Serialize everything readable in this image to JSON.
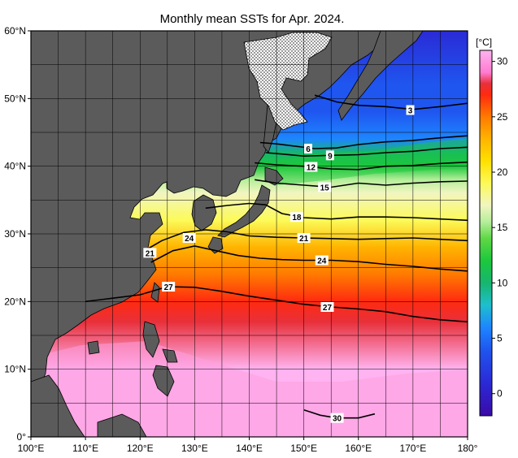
{
  "title": "Monthly mean SSTs for Apr. 2024.",
  "colors": {
    "land": "#5b5b5b",
    "frame": "#000000",
    "grid": "#000000",
    "sea_ice_pattern": "#000000"
  },
  "map": {
    "lon_range": [
      100,
      180
    ],
    "lat_range": [
      0,
      60
    ],
    "grid_step_deg": 5,
    "lon_tick_labels": [
      "100°E",
      "110°E",
      "120°E",
      "130°E",
      "140°E",
      "150°E",
      "160°E",
      "170°E",
      "180°"
    ],
    "lon_tick_values": [
      100,
      110,
      120,
      130,
      140,
      150,
      160,
      170,
      180
    ],
    "lat_tick_labels": [
      "0°",
      "10°N",
      "20°N",
      "30°N",
      "40°N",
      "50°N",
      "60°N"
    ],
    "lat_tick_values": [
      0,
      10,
      20,
      30,
      40,
      50,
      60
    ]
  },
  "colorbar": {
    "unit_label": "[°C]",
    "min": -2,
    "max": 31,
    "tick_labels": [
      "0",
      "5",
      "10",
      "15",
      "20",
      "25",
      "30"
    ],
    "tick_values": [
      0,
      5,
      10,
      15,
      20,
      25,
      30
    ],
    "stops": [
      {
        "value": -2,
        "color": "#3a0aa8"
      },
      {
        "value": 1,
        "color": "#2a2ad6"
      },
      {
        "value": 4,
        "color": "#1f56f0"
      },
      {
        "value": 6,
        "color": "#1e86ff"
      },
      {
        "value": 8,
        "color": "#1ebfcd"
      },
      {
        "value": 10,
        "color": "#17b56f"
      },
      {
        "value": 12,
        "color": "#1cc83c"
      },
      {
        "value": 14,
        "color": "#5ed845"
      },
      {
        "value": 15.5,
        "color": "#b5ee9a"
      },
      {
        "value": 17,
        "color": "#f2f5c0"
      },
      {
        "value": 19,
        "color": "#fcfa58"
      },
      {
        "value": 21,
        "color": "#ffe000"
      },
      {
        "value": 23,
        "color": "#ffb400"
      },
      {
        "value": 25,
        "color": "#ff7a00"
      },
      {
        "value": 27,
        "color": "#ff2a10"
      },
      {
        "value": 28,
        "color": "#e8303a"
      },
      {
        "value": 29,
        "color": "#ff7bd0"
      },
      {
        "value": 31,
        "color": "#ffb3f0"
      }
    ]
  },
  "isotherm_labels": [
    {
      "text": "3",
      "lon": 169.5,
      "lat": 48.3
    },
    {
      "text": "6",
      "lon": 150.8,
      "lat": 42.6
    },
    {
      "text": "9",
      "lon": 154.8,
      "lat": 41.6
    },
    {
      "text": "12",
      "lon": 151.3,
      "lat": 39.9
    },
    {
      "text": "15",
      "lon": 153.8,
      "lat": 36.9
    },
    {
      "text": "18",
      "lon": 148.7,
      "lat": 32.5
    },
    {
      "text": "21",
      "lon": 150.0,
      "lat": 29.4
    },
    {
      "text": "21",
      "lon": 121.8,
      "lat": 27.2
    },
    {
      "text": "24",
      "lon": 129.0,
      "lat": 29.4
    },
    {
      "text": "24",
      "lon": 153.3,
      "lat": 26.1
    },
    {
      "text": "27",
      "lon": 125.2,
      "lat": 22.2
    },
    {
      "text": "27",
      "lon": 154.3,
      "lat": 19.2
    },
    {
      "text": "30",
      "lon": 156.1,
      "lat": 2.8
    }
  ],
  "isotherm_lines": [
    {
      "label": "3",
      "points": [
        [
          152,
          50.5
        ],
        [
          156,
          49.5
        ],
        [
          160,
          49
        ],
        [
          165,
          48.8
        ],
        [
          170,
          48.4
        ],
        [
          175,
          48.8
        ],
        [
          180,
          49.3
        ]
      ]
    },
    {
      "label": "6",
      "points": [
        [
          142,
          43.5
        ],
        [
          145,
          43.3
        ],
        [
          148,
          43
        ],
        [
          152,
          42.6
        ],
        [
          156,
          42.7
        ],
        [
          160,
          43.2
        ],
        [
          165,
          43.6
        ],
        [
          170,
          43.8
        ],
        [
          175,
          44.2
        ],
        [
          180,
          44.5
        ]
      ]
    },
    {
      "label": "9",
      "points": [
        [
          143,
          42
        ],
        [
          146,
          41.8
        ],
        [
          150,
          41.5
        ],
        [
          155,
          41.6
        ],
        [
          160,
          41.7
        ],
        [
          165,
          42
        ],
        [
          170,
          42.2
        ],
        [
          175,
          42.6
        ],
        [
          180,
          42.8
        ]
      ]
    },
    {
      "label": "12",
      "points": [
        [
          141,
          40.5
        ],
        [
          145,
          40.2
        ],
        [
          150,
          40
        ],
        [
          155,
          39.6
        ],
        [
          160,
          39.5
        ],
        [
          165,
          40
        ],
        [
          170,
          40.1
        ],
        [
          175,
          40.4
        ],
        [
          180,
          40.6
        ]
      ]
    },
    {
      "label": "15",
      "points": [
        [
          141,
          38
        ],
        [
          145,
          37.5
        ],
        [
          150,
          37.2
        ],
        [
          155,
          36.9
        ],
        [
          160,
          37.5
        ],
        [
          165,
          37.2
        ],
        [
          170,
          37.5
        ],
        [
          175,
          37.7
        ],
        [
          180,
          37.8
        ]
      ]
    },
    {
      "label": "18",
      "points": [
        [
          132,
          33.8
        ],
        [
          136,
          34.2
        ],
        [
          140,
          34.5
        ],
        [
          143,
          34.3
        ],
        [
          146,
          33
        ],
        [
          150,
          32.4
        ],
        [
          155,
          32.2
        ],
        [
          160,
          32.5
        ],
        [
          165,
          32.5
        ],
        [
          170,
          32.4
        ],
        [
          175,
          32.2
        ],
        [
          180,
          32
        ]
      ]
    },
    {
      "label": "21",
      "points": [
        [
          121,
          27.6
        ],
        [
          124,
          29
        ],
        [
          128,
          30.2
        ],
        [
          132,
          30.6
        ],
        [
          136,
          30.3
        ],
        [
          140,
          29.7
        ],
        [
          145,
          29.5
        ],
        [
          150,
          29.4
        ],
        [
          155,
          29.3
        ],
        [
          160,
          29.2
        ],
        [
          165,
          29.3
        ],
        [
          170,
          29.4
        ],
        [
          175,
          29.2
        ],
        [
          180,
          29
        ]
      ]
    },
    {
      "label": "24",
      "points": [
        [
          122,
          25.8
        ],
        [
          126,
          27.5
        ],
        [
          130,
          28.2
        ],
        [
          134,
          27.5
        ],
        [
          138,
          26.8
        ],
        [
          142,
          26.4
        ],
        [
          146,
          26.2
        ],
        [
          150,
          26.1
        ],
        [
          155,
          26.1
        ],
        [
          160,
          25.9
        ],
        [
          165,
          25.5
        ],
        [
          170,
          25.2
        ],
        [
          175,
          24.8
        ],
        [
          180,
          24.5
        ]
      ]
    },
    {
      "label": "27",
      "points": [
        [
          110,
          20
        ],
        [
          115,
          20.5
        ],
        [
          120,
          21
        ],
        [
          125,
          22.2
        ],
        [
          130,
          22.1
        ],
        [
          135,
          21.5
        ],
        [
          140,
          20.8
        ],
        [
          145,
          20.2
        ],
        [
          150,
          19.6
        ],
        [
          155,
          19.2
        ],
        [
          160,
          18.9
        ],
        [
          165,
          18.5
        ],
        [
          170,
          17.8
        ],
        [
          175,
          17.3
        ],
        [
          180,
          17
        ]
      ]
    },
    {
      "label": "30",
      "points": [
        [
          150,
          4
        ],
        [
          153,
          3.2
        ],
        [
          156,
          2.8
        ],
        [
          160,
          2.8
        ],
        [
          163,
          3.4
        ]
      ]
    }
  ]
}
